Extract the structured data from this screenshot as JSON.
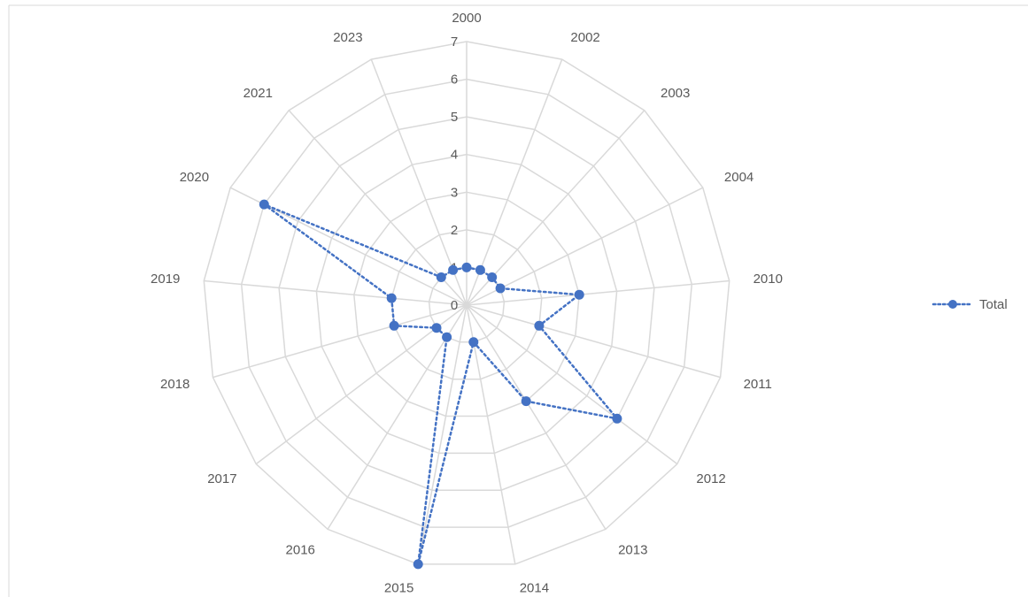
{
  "chart_data": {
    "type": "radar",
    "categories": [
      "2000",
      "2002",
      "2003",
      "2004",
      "2010",
      "2011",
      "2012",
      "2013",
      "2014",
      "2015",
      "2016",
      "2017",
      "2018",
      "2019",
      "2020",
      "2021",
      "2023"
    ],
    "series": [
      {
        "name": "Total",
        "values": [
          1,
          1,
          1,
          1,
          3,
          2,
          5,
          3,
          1,
          7,
          1,
          1,
          2,
          2,
          6,
          1,
          1
        ]
      }
    ],
    "rlim": [
      0,
      7
    ],
    "ticks": [
      0,
      1,
      2,
      3,
      4,
      5,
      6,
      7
    ],
    "grid": true,
    "legend_position": "right",
    "colors": {
      "series": "#4472C4",
      "grid": "#d9d9d9",
      "text": "#595959"
    }
  }
}
